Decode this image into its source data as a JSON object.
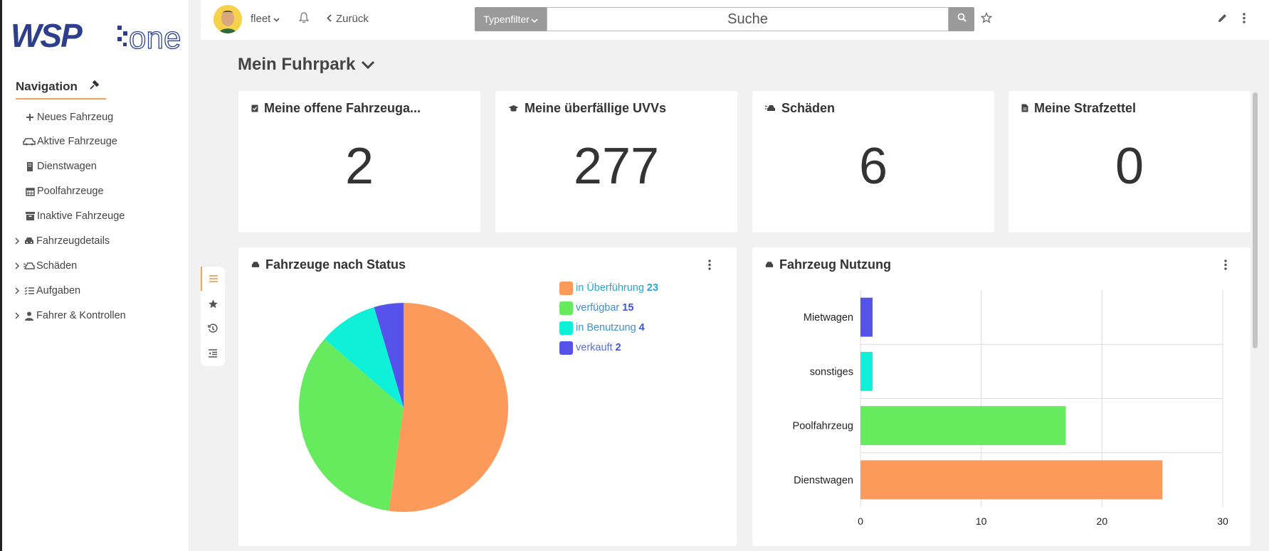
{
  "app": {
    "logo_text_left": "WSP",
    "logo_text_right": "one"
  },
  "sidebar": {
    "nav_title": "Navigation",
    "items": [
      {
        "label": "Neues Fahrzeug",
        "icon": "plus-icon",
        "expandable": false
      },
      {
        "label": "Aktive Fahrzeuge",
        "icon": "cars-icon",
        "expandable": false
      },
      {
        "label": "Dienstwagen",
        "icon": "building-icon",
        "expandable": false
      },
      {
        "label": "Poolfahrzeuge",
        "icon": "calendar-icon",
        "expandable": false
      },
      {
        "label": "Inaktive Fahrzeuge",
        "icon": "archive-icon",
        "expandable": false
      },
      {
        "label": "Fahrzeugdetails",
        "icon": "car-icon",
        "expandable": true
      },
      {
        "label": "Schäden",
        "icon": "car-crash-icon",
        "expandable": true
      },
      {
        "label": "Aufgaben",
        "icon": "tasks-icon",
        "expandable": true
      },
      {
        "label": "Fahrer & Kontrollen",
        "icon": "user-icon",
        "expandable": true
      }
    ]
  },
  "topbar": {
    "user": "fleet",
    "back_label": "Zurück",
    "type_filter_label": "Typenfilter",
    "search_placeholder": "Suche"
  },
  "main": {
    "page_title": "Mein Fuhrpark",
    "kpis": [
      {
        "title": "Meine offene Fahrzeuga...",
        "value": "2",
        "icon": "clipboard-check-icon"
      },
      {
        "title": "Meine überfällige UVVs",
        "value": "277",
        "icon": "graduation-cap-icon"
      },
      {
        "title": "Schäden",
        "value": "6",
        "icon": "car-crash-icon"
      },
      {
        "title": "Meine Strafzettel",
        "value": "0",
        "icon": "file-invoice-icon"
      }
    ]
  },
  "chart_data": [
    {
      "type": "pie",
      "title": "Fahrzeuge nach Status",
      "categories": [
        "in Überführung",
        "verfügbar",
        "in Benutzung",
        "verkauft"
      ],
      "values": [
        23,
        15,
        4,
        2
      ],
      "colors": [
        "#fb9a5a",
        "#66ea5e",
        "#0ff0d8",
        "#5553ea"
      ],
      "legend": "right"
    },
    {
      "type": "bar",
      "orientation": "horizontal",
      "title": "Fahrzeug Nutzung",
      "categories": [
        "Mietwagen",
        "sonstiges",
        "Poolfahrzeug",
        "Dienstwagen"
      ],
      "values": [
        1,
        1,
        17,
        25
      ],
      "colors": [
        "#5553ea",
        "#0ff0d8",
        "#66ea5e",
        "#fb9a5a"
      ],
      "xlim": [
        0,
        30
      ],
      "xticks": [
        "0",
        "10",
        "20",
        "30"
      ],
      "grid": true
    }
  ]
}
